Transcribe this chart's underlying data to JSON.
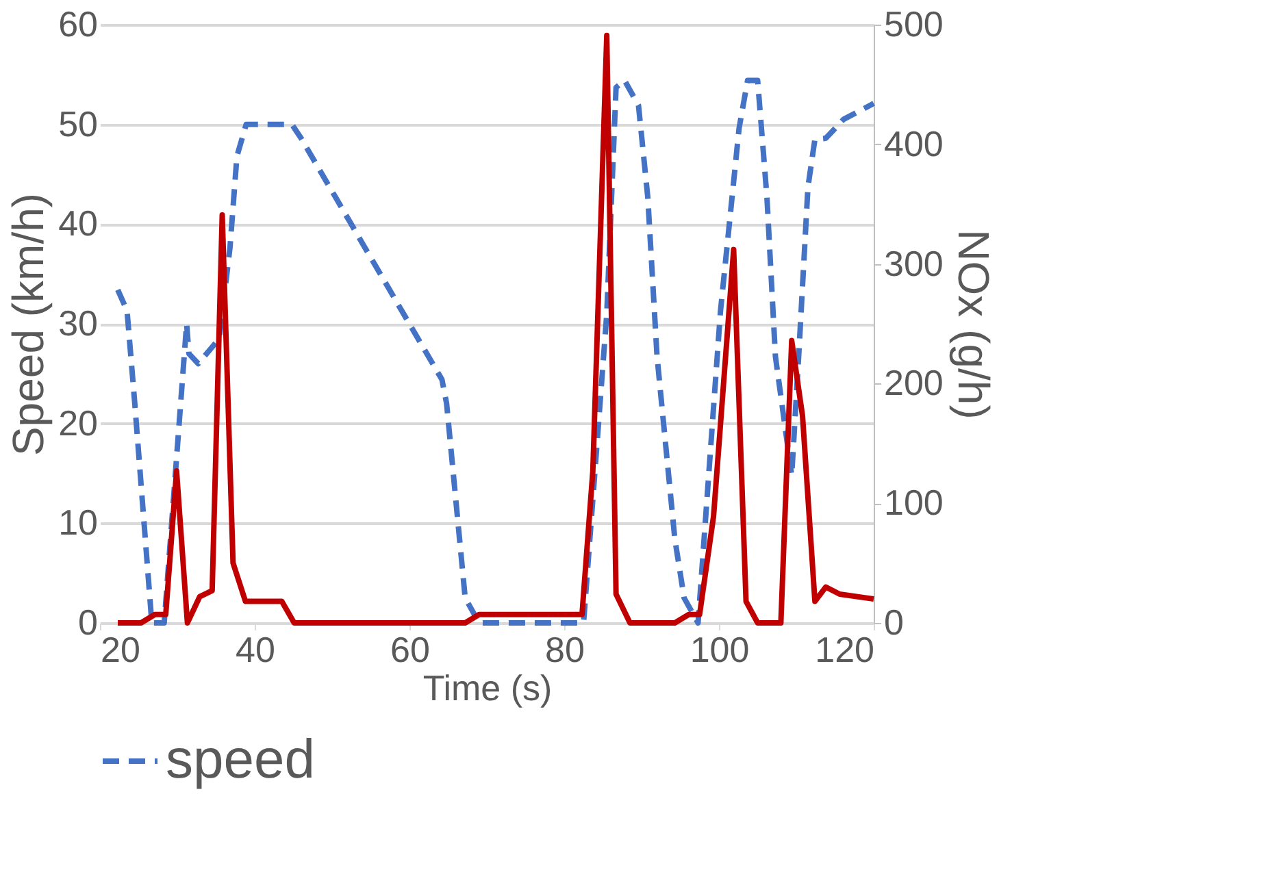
{
  "chart_data": {
    "type": "line",
    "xlabel": "Time (s)",
    "ylabel": "Speed (km/h)",
    "y2label": "NOx (g/h)",
    "xlim": [
      20,
      120
    ],
    "xticks": [
      20,
      40,
      60,
      80,
      100,
      120
    ],
    "ylim": [
      0,
      60
    ],
    "yticks": [
      0,
      10,
      20,
      30,
      40,
      50,
      60
    ],
    "y2lim": [
      0,
      500
    ],
    "y2ticks": [
      0,
      100,
      200,
      300,
      400,
      500
    ],
    "grid": "y",
    "legend": "bottom",
    "series": [
      {
        "name": "speed",
        "color": "#4472c4",
        "line_style": "dashed",
        "x": [
          22.3,
          23.5,
          24.5,
          26.7,
          28.3,
          31.2,
          31.5,
          32.7,
          35.4,
          36.8,
          37.7,
          38.9,
          44.8,
          46,
          64.2,
          64.8,
          67.2,
          69,
          82.5,
          85.5,
          86.7,
          87.8,
          89.6,
          90.8,
          92,
          94.3,
          95.5,
          97.3,
          100.2,
          102.6,
          103.7,
          105,
          106.2,
          107.3,
          109.4,
          110.3,
          111.5,
          112.4,
          113.8,
          116.1,
          120
        ],
        "values": [
          33.4,
          31.3,
          22,
          0,
          0,
          30,
          27,
          26,
          28.5,
          37.6,
          46.8,
          50,
          50,
          48.6,
          24.4,
          22,
          2.5,
          0,
          0,
          31,
          53.7,
          54.4,
          51.9,
          42.7,
          26.7,
          8.4,
          2.5,
          0,
          31.3,
          49.6,
          54.4,
          54.4,
          42.7,
          26.7,
          14.8,
          26.7,
          43.7,
          48.5,
          48.6,
          50.5,
          52.1
        ]
      },
      {
        "color": "#c00000",
        "line_style": "solid",
        "axis": "y2",
        "x": [
          22.3,
          25.3,
          27.1,
          28.5,
          29.9,
          31.3,
          32.9,
          34.5,
          35.8,
          37.2,
          38.8,
          43.5,
          45.1,
          67.2,
          69,
          82.3,
          83.7,
          85.5,
          86.7,
          88.5,
          94.3,
          96.1,
          97.5,
          99.3,
          101.9,
          103.5,
          105,
          108,
          109.4,
          110.8,
          112.4,
          113.8,
          115.6,
          120
        ],
        "values": [
          0,
          0,
          7,
          7,
          127,
          0,
          22,
          27,
          341,
          50,
          18,
          18,
          0,
          0,
          7,
          7,
          127,
          491,
          24,
          0,
          0,
          7,
          7,
          89,
          312,
          18,
          0,
          0,
          236,
          173,
          18,
          30,
          24,
          20
        ]
      }
    ]
  }
}
